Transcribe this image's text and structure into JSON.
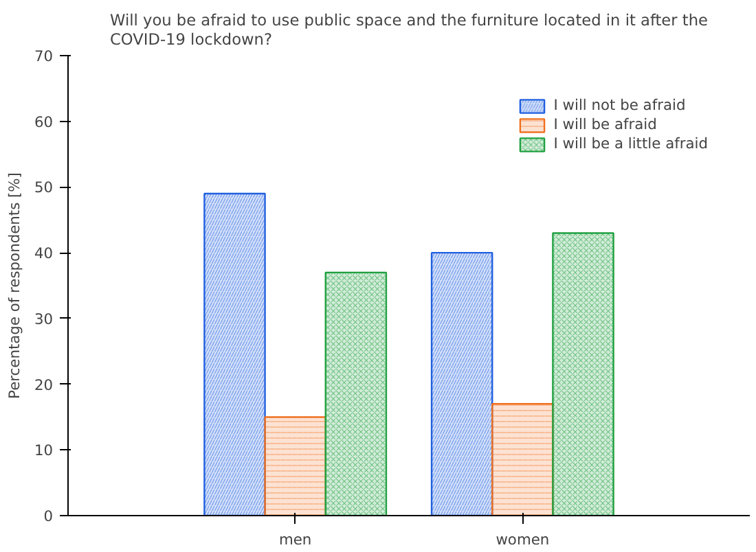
{
  "chart_data": {
    "type": "bar",
    "title": "Will you be afraid to use public space and the furniture located in it after the COVID-19 lockdown?",
    "ylabel": "Percentage of respondents [%]",
    "categories": [
      "men",
      "women"
    ],
    "series": [
      {
        "name": "I will not be afraid",
        "color": "#2060e0",
        "values": [
          49,
          40
        ]
      },
      {
        "name": "I will be afraid",
        "color": "#f07020",
        "values": [
          15,
          17
        ]
      },
      {
        "name": "I will be a little afraid",
        "color": "#20a040",
        "values": [
          37,
          43
        ]
      }
    ],
    "ylim": [
      0,
      70
    ],
    "yticks": [
      0,
      10,
      20,
      30,
      40,
      50,
      60,
      70
    ],
    "grid": false,
    "legend": "top right"
  }
}
